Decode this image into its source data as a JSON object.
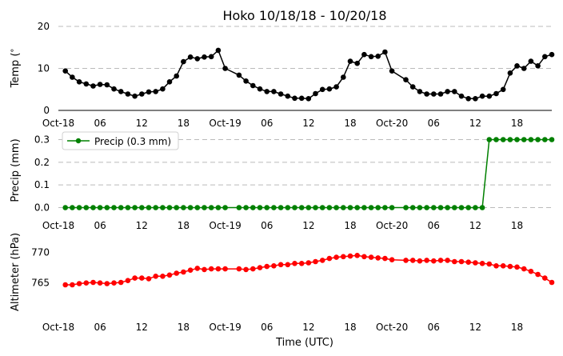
{
  "chart_data": {
    "title": "Hoko 10/18/18 - 10/20/18",
    "xlabel": "Time (UTC)",
    "x_ticks": [
      "Oct-18",
      "06",
      "12",
      "18",
      "Oct-19",
      "06",
      "12",
      "18",
      "Oct-20",
      "06",
      "12",
      "18"
    ],
    "x_tick_hours": [
      0,
      6,
      12,
      18,
      24,
      30,
      36,
      42,
      48,
      54,
      60,
      66
    ],
    "x_range_hours": [
      0,
      71
    ],
    "panels": [
      {
        "type": "line",
        "ylabel": "Temp ( C)",
        "ylabel_symbol": "°",
        "ylim": [
          0,
          20
        ],
        "yticks": [
          0,
          10,
          20
        ],
        "grid": "horizontal-dashed",
        "color": "#000000",
        "series": [
          {
            "x": [
              1,
              2,
              3,
              4,
              5,
              6,
              7,
              8,
              9,
              10,
              11,
              12,
              13,
              14,
              15,
              16,
              17,
              18,
              19,
              20,
              21,
              22,
              23,
              24,
              26,
              27,
              28,
              29,
              30,
              31,
              32,
              33,
              34,
              35,
              36,
              37,
              38,
              39,
              40,
              41,
              42,
              43,
              44,
              45,
              46,
              47,
              48,
              50,
              51,
              52,
              53,
              54,
              55,
              56,
              57,
              58,
              59,
              60,
              61,
              62,
              63,
              64,
              65,
              66,
              67,
              68,
              69,
              70,
              71
            ],
            "y": [
              9.4,
              7.9,
              6.8,
              6.3,
              5.8,
              6.2,
              6.1,
              5.1,
              4.5,
              3.9,
              3.4,
              3.9,
              4.4,
              4.5,
              5.1,
              6.8,
              8.2,
              11.6,
              12.7,
              12.3,
              12.7,
              12.8,
              14.3,
              10.0,
              8.4,
              7.0,
              5.9,
              5.1,
              4.5,
              4.5,
              3.9,
              3.4,
              2.9,
              2.9,
              2.8,
              4.0,
              5.0,
              5.1,
              5.6,
              7.9,
              11.7,
              11.2,
              13.3,
              12.8,
              12.9,
              13.9,
              9.4,
              7.3,
              5.6,
              4.5,
              3.9,
              3.9,
              3.9,
              4.5,
              4.5,
              3.4,
              2.8,
              2.8,
              3.4,
              3.4,
              4.0,
              5.0,
              8.9,
              10.6,
              10.0,
              11.7,
              10.6,
              12.8,
              13.3
            ]
          }
        ]
      },
      {
        "type": "line",
        "ylabel": "Precip (mm)",
        "ylim": [
          -0.03,
          0.33
        ],
        "yticks": [
          "0.0",
          "0.1",
          "0.2",
          "0.3"
        ],
        "grid": "horizontal-dashed",
        "color": "#008000",
        "legend": {
          "label": "Precip (0.3 mm)",
          "placement": "upper-left"
        },
        "series": [
          {
            "x": [
              1,
              2,
              3,
              4,
              5,
              6,
              7,
              8,
              9,
              10,
              11,
              12,
              13,
              14,
              15,
              16,
              17,
              18,
              19,
              20,
              21,
              22,
              23,
              24,
              26,
              27,
              28,
              29,
              30,
              31,
              32,
              33,
              34,
              35,
              36,
              37,
              38,
              39,
              40,
              41,
              42,
              43,
              44,
              45,
              46,
              47,
              48,
              50,
              51,
              52,
              53,
              54,
              55,
              56,
              57,
              58,
              59,
              60,
              61,
              62,
              63,
              64,
              65,
              66,
              67,
              68,
              69,
              70,
              71
            ],
            "y": [
              0,
              0,
              0,
              0,
              0,
              0,
              0,
              0,
              0,
              0,
              0,
              0,
              0,
              0,
              0,
              0,
              0,
              0,
              0,
              0,
              0,
              0,
              0,
              0,
              0,
              0,
              0,
              0,
              0,
              0,
              0,
              0,
              0,
              0,
              0,
              0,
              0,
              0,
              0,
              0,
              0,
              0,
              0,
              0,
              0,
              0,
              0,
              0,
              0,
              0,
              0,
              0,
              0,
              0,
              0,
              0,
              0,
              0,
              0,
              0.3,
              0.3,
              0.3,
              0.3,
              0.3,
              0.3,
              0.3,
              0.3,
              0.3,
              0.3
            ]
          }
        ]
      },
      {
        "type": "line",
        "ylabel": "Altimeter (hPa)",
        "ylim": [
          760,
          771.5
        ],
        "yticks": [
          765,
          770
        ],
        "grid": "none",
        "color": "#ff0000",
        "series": [
          {
            "x": [
              1,
              2,
              3,
              4,
              5,
              6,
              7,
              8,
              9,
              10,
              11,
              12,
              13,
              14,
              15,
              16,
              17,
              18,
              19,
              20,
              21,
              22,
              23,
              24,
              26,
              27,
              28,
              29,
              30,
              31,
              32,
              33,
              34,
              35,
              36,
              37,
              38,
              39,
              40,
              41,
              42,
              43,
              44,
              45,
              46,
              47,
              48,
              50,
              51,
              52,
              53,
              54,
              55,
              56,
              57,
              58,
              59,
              60,
              61,
              62,
              63,
              64,
              65,
              66,
              67,
              68,
              69,
              70,
              71
            ],
            "y": [
              764.7,
              764.7,
              764.9,
              765.0,
              765.1,
              765.0,
              764.9,
              765.0,
              765.1,
              765.4,
              765.8,
              765.8,
              765.7,
              766.1,
              766.1,
              766.3,
              766.6,
              766.8,
              767.1,
              767.4,
              767.2,
              767.3,
              767.3,
              767.3,
              767.3,
              767.2,
              767.3,
              767.5,
              767.7,
              767.8,
              768.0,
              768.0,
              768.2,
              768.2,
              768.3,
              768.5,
              768.7,
              769.0,
              769.2,
              769.3,
              769.4,
              769.5,
              769.3,
              769.2,
              769.1,
              769.0,
              768.8,
              768.7,
              768.7,
              768.6,
              768.7,
              768.6,
              768.7,
              768.7,
              768.5,
              768.5,
              768.4,
              768.3,
              768.2,
              768.1,
              767.8,
              767.8,
              767.7,
              767.6,
              767.3,
              766.9,
              766.4,
              765.8,
              765.1
            ]
          }
        ]
      }
    ]
  }
}
